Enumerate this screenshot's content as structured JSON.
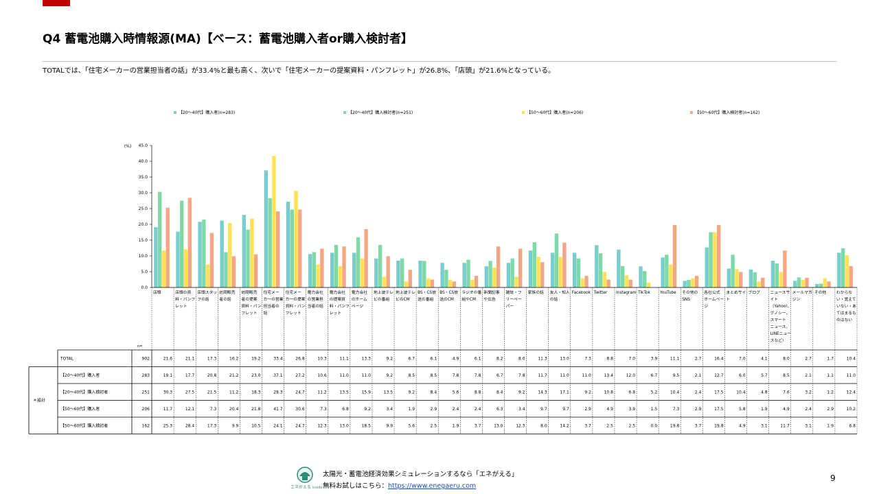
{
  "header": {
    "title": "Q4 蓄電池購入時情報源(MA)【ベース：蓄電池購入者or購入検討者】",
    "summary": "TOTALでは、「住宅メーカーの営業担当者の話」が33.4%と最も高く、次いで「住宅メーカーの提案資料・パンフレット」が26.8%、「店頭」が21.6%となっている。"
  },
  "colors": {
    "s1": "#79cdcd",
    "s2": "#7fd8a8",
    "s3": "#ffe156",
    "s4": "#f4a582",
    "brand_red": "#c00000"
  },
  "chart_data": {
    "type": "bar",
    "ylabel": "(%)",
    "ylim": [
      0,
      45
    ],
    "yticks": [
      "0.0",
      "5.0",
      "10.0",
      "15.0",
      "20.0",
      "25.0",
      "30.0",
      "35.0",
      "40.0",
      "45.0"
    ],
    "categories": [
      "店頭",
      "店頭の資料・パンフレット",
      "店頭スタッフの話",
      "訪問販売者の話",
      "訪問販売者の提案資料・パンフレット",
      "住宅メーカーの営業担当者の話",
      "住宅メーカーの提案資料・パンフレット",
      "電力会社の営業担当者の話",
      "電力会社の提案資料・パンフレット",
      "電力会社のホームページ",
      "地上波テレビの番組",
      "地上波テレビのCM",
      "BS・CS放送の番組",
      "BS・CS放送のCM",
      "ラジオの番組やCM",
      "新聞記事や広告",
      "雑誌・フリーペーパー",
      "家族の話",
      "友人・知人の話",
      "Facebook",
      "Twitter",
      "Instagram",
      "TikTok",
      "YouTube",
      "その他のSNS",
      "各社公式ホームページ",
      "まとめサイト",
      "ブログ",
      "ニュースサイト（Yahoo!、グノシー、スマートニュース、LINEニュースなど）",
      "メールマガジン",
      "その他",
      "わからない・覚えていない・あてはまるものはない"
    ],
    "category_lines": [
      [
        "店頭"
      ],
      [
        "店頭の資",
        "料・パンフ",
        "レット"
      ],
      [
        "店頭スタッ",
        "フの話"
      ],
      [
        "訪問販売",
        "者の話"
      ],
      [
        "訪問販売",
        "者の提案",
        "資料・パン",
        "フレット"
      ],
      [
        "住宅メー",
        "カーの営業",
        "担当者の",
        "話"
      ],
      [
        "住宅メー",
        "カーの提案",
        "資料・パン",
        "フレット"
      ],
      [
        "電力会社",
        "の営業担",
        "当者の話"
      ],
      [
        "電力会社",
        "の提案資",
        "料・パンフ",
        "レット"
      ],
      [
        "電力会社",
        "のホーム",
        "ページ"
      ],
      [
        "地上波テレ",
        "ビの番組"
      ],
      [
        "地上波テレ",
        "ビのCM"
      ],
      [
        "BS・CS放",
        "送の番組"
      ],
      [
        "BS・CS放",
        "送のCM"
      ],
      [
        "ラジオの番",
        "組やCM"
      ],
      [
        "新聞記事",
        "や広告"
      ],
      [
        "雑誌・フ",
        "リーペー",
        "パー"
      ],
      [
        "家族の話"
      ],
      [
        "友人・知人",
        "の話"
      ],
      [
        "Facebook"
      ],
      [
        "Twitter"
      ],
      [
        "Instagram"
      ],
      [
        "TikTok"
      ],
      [
        "YouTube"
      ],
      [
        "その他の",
        "SNS"
      ],
      [
        "各社公式",
        "ホームペー",
        "ジ"
      ],
      [
        "まとめサイ",
        "ト"
      ],
      [
        "ブログ"
      ],
      [
        "ニュースサ",
        "イト",
        "（Yahoo!、",
        "グノシー、",
        "スマート",
        "ニュース、",
        "LINEニュー",
        "スなど）"
      ],
      [
        "メールマガ",
        "ジン"
      ],
      [
        "その他"
      ],
      [
        "わからな",
        "い・覚えて",
        "いない・あ",
        "てはまるも",
        "のはない"
      ]
    ],
    "series": [
      {
        "name": "【20～40代】購入者(n=283)",
        "color": "#79cdcd",
        "values": [
          19.1,
          17.7,
          20.8,
          21.2,
          23.0,
          37.1,
          27.2,
          10.6,
          11.0,
          11.0,
          9.2,
          8.5,
          8.5,
          7.8,
          7.8,
          6.7,
          7.8,
          11.7,
          11.0,
          11.0,
          13.4,
          12.0,
          6.7,
          9.5,
          2.1,
          12.7,
          6.0,
          5.7,
          8.5,
          2.1,
          1.1,
          11.0
        ]
      },
      {
        "name": "【20～40代】購入検討者(n=251)",
        "color": "#7fd8a8",
        "values": [
          30.3,
          27.5,
          21.5,
          11.2,
          18.3,
          28.3,
          24.7,
          11.2,
          13.5,
          15.9,
          13.5,
          9.2,
          8.4,
          5.6,
          8.8,
          8.4,
          9.2,
          14.3,
          17.1,
          9.2,
          10.8,
          6.8,
          5.2,
          10.4,
          2.4,
          17.5,
          10.4,
          4.8,
          7.6,
          3.2,
          1.2,
          12.4
        ]
      },
      {
        "name": "【50～60代】購入者(n=206)",
        "color": "#ffe156",
        "values": [
          11.7,
          12.1,
          7.3,
          20.4,
          21.8,
          41.7,
          30.6,
          7.3,
          6.8,
          9.2,
          3.4,
          1.9,
          2.9,
          2.4,
          2.4,
          6.3,
          3.4,
          9.7,
          9.7,
          2.9,
          4.9,
          3.9,
          1.5,
          7.3,
          2.9,
          17.5,
          5.8,
          1.9,
          4.9,
          2.4,
          2.9,
          10.2
        ]
      },
      {
        "name": "【50～60代】購入検討者(n=162)",
        "color": "#f4a582",
        "values": [
          25.3,
          28.4,
          17.3,
          9.9,
          10.5,
          24.1,
          24.7,
          12.3,
          13.0,
          18.5,
          9.9,
          5.6,
          2.5,
          1.9,
          3.7,
          13.0,
          12.3,
          8.0,
          14.2,
          3.7,
          2.5,
          2.5,
          0.0,
          19.8,
          3.7,
          19.8,
          4.9,
          3.1,
          11.7,
          3.1,
          1.9,
          6.8
        ]
      }
    ],
    "legend_position": "top",
    "grid": false
  },
  "table": {
    "n_header": "n=",
    "group_label": "＊設計",
    "rows": [
      {
        "label": "TOTAL",
        "n": "902",
        "values": [
          "21.6",
          "21.1",
          "17.3",
          "16.2",
          "19.2",
          "33.4",
          "26.8",
          "10.3",
          "11.1",
          "13.3",
          "9.2",
          "6.7",
          "6.1",
          "4.9",
          "6.1",
          "8.2",
          "8.0",
          "11.3",
          "13.0",
          "7.3",
          "8.8",
          "7.0",
          "3.9",
          "11.1",
          "2.7",
          "16.4",
          "7.0",
          "4.1",
          "8.0",
          "2.7",
          "1.7",
          "10.4"
        ]
      },
      {
        "label": "【20～40代】購入者",
        "n": "283",
        "values": [
          "19.1",
          "17.7",
          "20.8",
          "21.2",
          "23.0",
          "37.1",
          "27.2",
          "10.6",
          "11.0",
          "11.0",
          "9.2",
          "8.5",
          "8.5",
          "7.8",
          "7.8",
          "6.7",
          "7.8",
          "11.7",
          "11.0",
          "11.0",
          "13.4",
          "12.0",
          "6.7",
          "9.5",
          "2.1",
          "12.7",
          "6.0",
          "5.7",
          "8.5",
          "2.1",
          "1.1",
          "11.0"
        ]
      },
      {
        "label": "【20～40代】購入検討者",
        "n": "251",
        "values": [
          "30.3",
          "27.5",
          "21.5",
          "11.2",
          "18.3",
          "28.3",
          "24.7",
          "11.2",
          "13.5",
          "15.9",
          "13.5",
          "9.2",
          "8.4",
          "5.6",
          "8.8",
          "8.4",
          "9.2",
          "14.3",
          "17.1",
          "9.2",
          "10.8",
          "6.8",
          "5.2",
          "10.4",
          "2.4",
          "17.5",
          "10.4",
          "4.8",
          "7.6",
          "3.2",
          "1.2",
          "12.4"
        ]
      },
      {
        "label": "【50～60代】購入者",
        "n": "206",
        "values": [
          "11.7",
          "12.1",
          "7.3",
          "20.4",
          "21.8",
          "41.7",
          "30.6",
          "7.3",
          "6.8",
          "9.2",
          "3.4",
          "1.9",
          "2.9",
          "2.4",
          "2.4",
          "6.3",
          "3.4",
          "9.7",
          "9.7",
          "2.9",
          "4.9",
          "3.9",
          "1.5",
          "7.3",
          "2.9",
          "17.5",
          "5.8",
          "1.9",
          "4.9",
          "2.4",
          "2.9",
          "10.2"
        ]
      },
      {
        "label": "【50～60代】購入検討者",
        "n": "162",
        "values": [
          "25.3",
          "28.4",
          "17.3",
          "9.9",
          "10.5",
          "24.1",
          "24.7",
          "12.3",
          "13.0",
          "18.5",
          "9.9",
          "5.6",
          "2.5",
          "1.9",
          "3.7",
          "13.0",
          "12.3",
          "8.0",
          "14.2",
          "3.7",
          "2.5",
          "2.5",
          "0.0",
          "19.8",
          "3.7",
          "19.8",
          "4.9",
          "3.1",
          "11.7",
          "3.1",
          "1.9",
          "6.8"
        ]
      }
    ]
  },
  "footer": {
    "line1": "太陽光・蓄電池経済効果シミュレーションするなら「エネがえる」",
    "line2_prefix": "無料お試しはこちら：",
    "link": "https://www.enegaeru.com",
    "logo_text": "エネがえる",
    "logo_sub": "inside",
    "page_number": "9"
  }
}
